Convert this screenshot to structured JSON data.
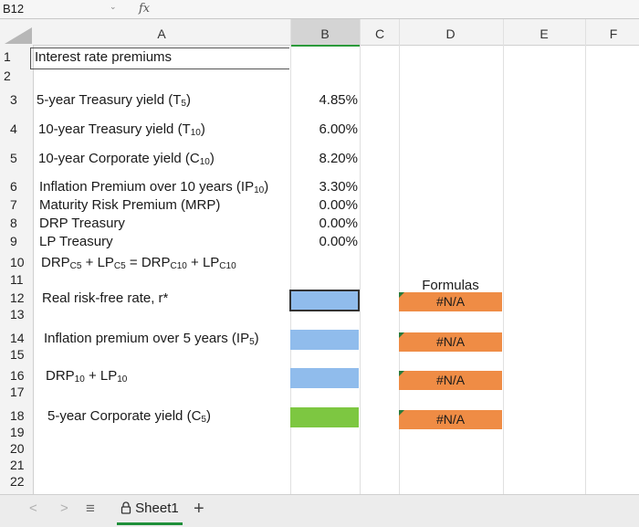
{
  "formula_bar": {
    "cell_ref": "B12",
    "fx": "fx",
    "content": ""
  },
  "columns": [
    "A",
    "B",
    "C",
    "D",
    "E",
    "F"
  ],
  "rows": [
    "1",
    "2",
    "3",
    "4",
    "5",
    "6",
    "7",
    "8",
    "9",
    "10",
    "11",
    "12",
    "13",
    "14",
    "15",
    "16",
    "17",
    "18",
    "19",
    "20",
    "21",
    "22"
  ],
  "cells": {
    "title": "Interest rate premiums",
    "r3_label": "5-year Treasury yield (T",
    "r3_sub": "5",
    "r3_tail": ")",
    "r3_value": "4.85%",
    "r4_label": "10-year Treasury yield (T",
    "r4_sub": "10",
    "r4_tail": ")",
    "r4_value": "6.00%",
    "r5_label": "10-year Corporate yield (C",
    "r5_sub": "10",
    "r5_tail": ")",
    "r5_value": "8.20%",
    "r6_label": "Inflation Premium over 10 years (IP",
    "r6_sub": "10",
    "r6_tail": ")",
    "r6_value": "3.30%",
    "r7_label": "Maturity Risk Premium (MRP)",
    "r7_value": "0.00%",
    "r8_label": "DRP Treasury",
    "r8_value": "0.00%",
    "r9_label": "LP Treasury",
    "r9_value": "0.00%",
    "r10_a": "DRP",
    "r10_a_sub": "C5",
    "r10_b": " + LP",
    "r10_b_sub": "C5",
    "r10_c": " = DRP",
    "r10_c_sub": "C10",
    "r10_d": " + LP",
    "r10_d_sub": "C10",
    "r12_label": "Real risk-free rate, r*",
    "r14_label": "Inflation premium over 5 years (IP",
    "r14_sub": "5",
    "r14_tail": ")",
    "r16_a": "DRP",
    "r16_a_sub": "10",
    "r16_b": " + LP",
    "r16_b_sub": "10",
    "r18_label": "5-year Corporate yield (C",
    "r18_sub": "5",
    "r18_tail": ")",
    "formulas_header": "Formulas",
    "d12": "#N/A",
    "d14": "#N/A",
    "d16": "#N/A",
    "d18": "#N/A"
  },
  "colors": {
    "blue_input": "#90bcec",
    "green_input": "#7dc741",
    "orange_formula": "#ef8c45",
    "selected_column_underline": "#2a9a3a"
  },
  "tab_bar": {
    "prev": "<",
    "next": ">",
    "menu": "≡",
    "sheet_icon": "lock-icon",
    "sheet_name": "Sheet1",
    "add": "+"
  }
}
